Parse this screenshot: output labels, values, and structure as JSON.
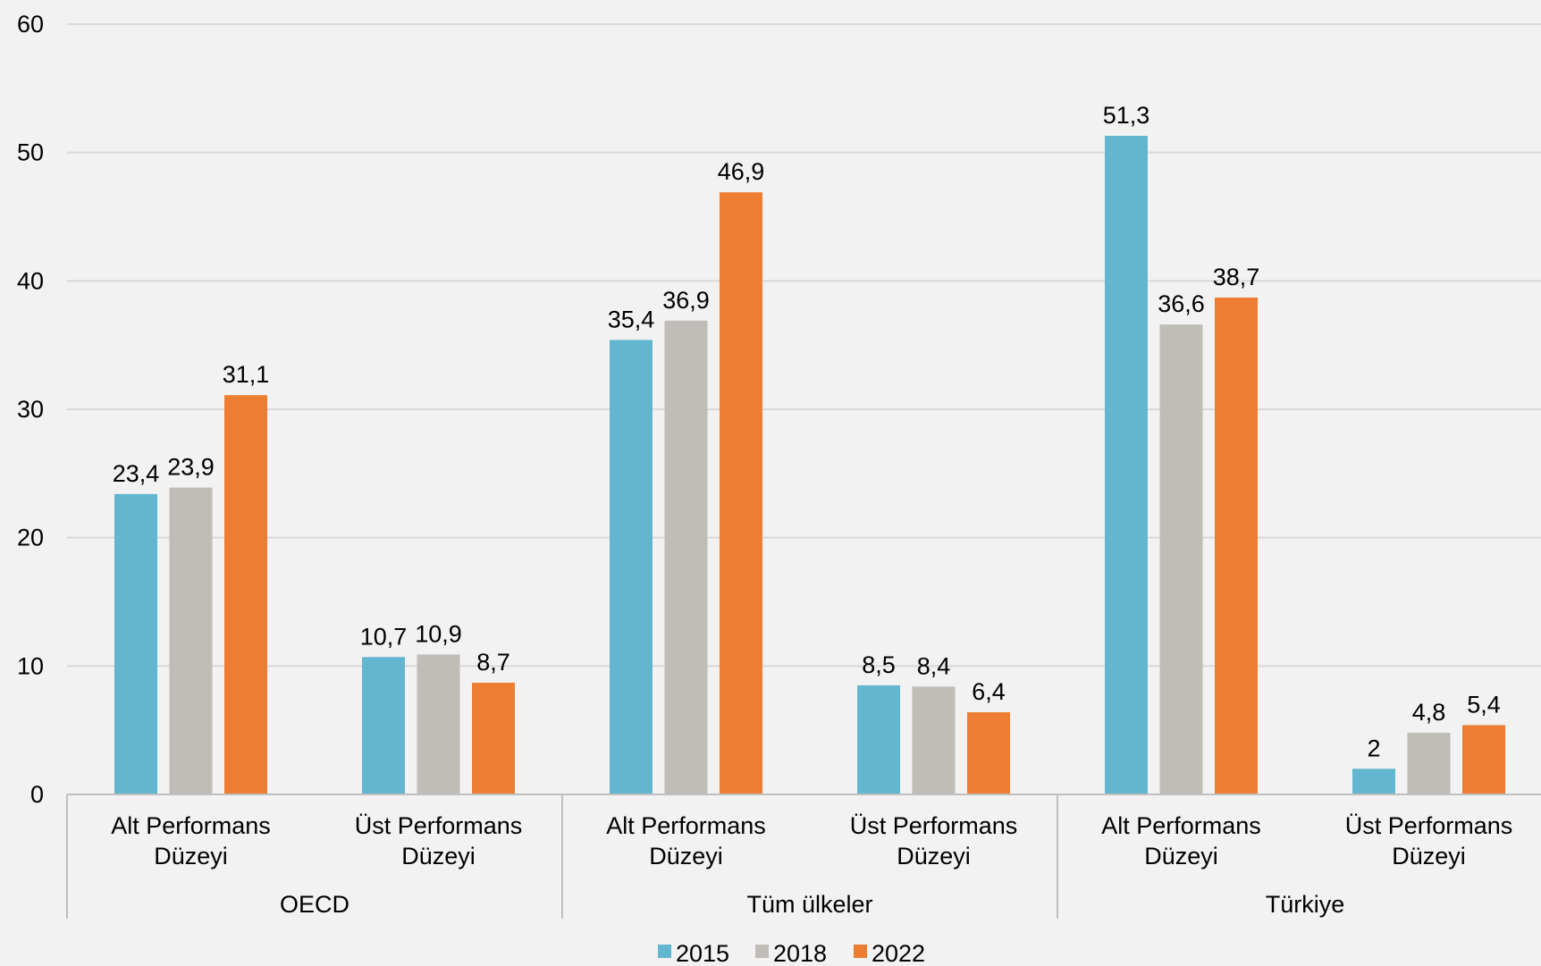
{
  "chart_data": {
    "type": "bar",
    "groups": [
      {
        "label": "OECD",
        "categories": [
          "Alt Performans Düzeyi",
          "Üst Performans Düzeyi"
        ]
      },
      {
        "label": "Tüm ülkeler",
        "categories": [
          "Alt Performans Düzeyi",
          "Üst Performans Düzeyi"
        ]
      },
      {
        "label": "Türkiye",
        "categories": [
          "Alt Performans Düzeyi",
          "Üst Performans Düzeyi"
        ]
      }
    ],
    "series": [
      {
        "name": "2015",
        "color": "#62b6d0",
        "values": [
          23.4,
          10.7,
          35.4,
          8.5,
          51.3,
          2
        ],
        "labels": [
          "23,4",
          "10,7",
          "35,4",
          "8,5",
          "51,3",
          "2"
        ]
      },
      {
        "name": "2018",
        "color": "#c0bcb7",
        "values": [
          23.9,
          10.9,
          36.9,
          8.4,
          36.6,
          4.8
        ],
        "labels": [
          "23,9",
          "10,9",
          "36,9",
          "8,4",
          "36,6",
          "4,8"
        ]
      },
      {
        "name": "2022",
        "color": "#ed7d31",
        "values": [
          31.1,
          8.7,
          46.9,
          6.4,
          38.7,
          5.4
        ],
        "labels": [
          "31,1",
          "8,7",
          "46,9",
          "6,4",
          "38,7",
          "5,4"
        ]
      }
    ],
    "yticks": [
      "0",
      "10",
      "20",
      "30",
      "40",
      "50",
      "60"
    ],
    "ylim": [
      0,
      60
    ],
    "grid": true,
    "legend_position": "bottom",
    "title": "",
    "xlabel": "",
    "ylabel": ""
  }
}
